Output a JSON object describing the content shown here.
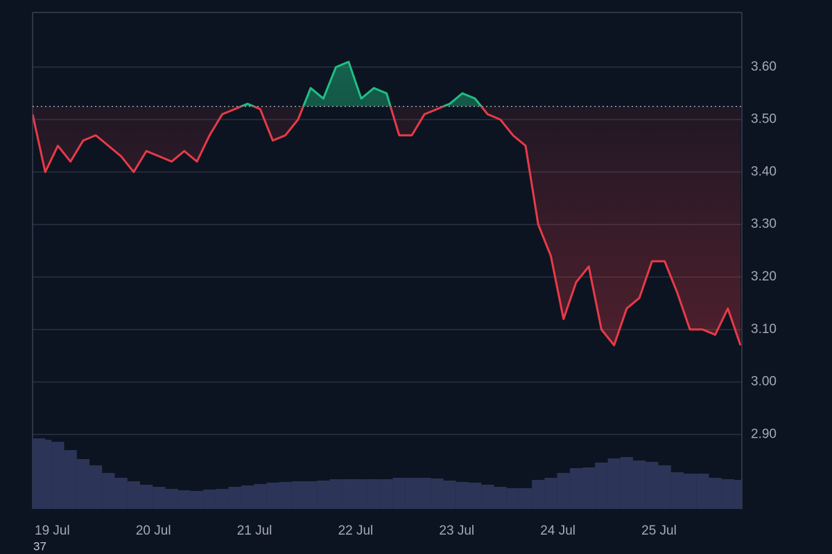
{
  "chart_data": {
    "type": "line",
    "categories": [
      "19 Jul",
      null,
      null,
      null,
      null,
      null,
      null,
      null,
      "20 Jul",
      null,
      null,
      null,
      null,
      null,
      null,
      null,
      "21 Jul",
      null,
      null,
      null,
      null,
      null,
      null,
      null,
      "22 Jul",
      null,
      null,
      null,
      null,
      null,
      null,
      null,
      "23 Jul",
      null,
      null,
      null,
      null,
      null,
      null,
      null,
      "24 Jul",
      null,
      null,
      null,
      null,
      null,
      null,
      null,
      "25 Jul",
      null,
      null,
      null,
      null,
      null,
      null,
      null,
      null
    ],
    "series": [
      {
        "color": "#e83a48",
        "color_above": "#1fbf83",
        "values": [
          3.51,
          3.4,
          3.45,
          3.42,
          3.46,
          3.47,
          3.45,
          3.43,
          3.4,
          3.44,
          3.43,
          3.42,
          3.44,
          3.42,
          3.47,
          3.51,
          3.52,
          3.53,
          3.52,
          3.46,
          3.47,
          3.5,
          3.56,
          3.54,
          3.6,
          3.61,
          3.54,
          3.56,
          3.55,
          3.47,
          3.47,
          3.51,
          3.52,
          3.53,
          3.55,
          3.54,
          3.51,
          3.5,
          3.47,
          3.45,
          3.3,
          3.24,
          3.12,
          3.19,
          3.22,
          3.1,
          3.07,
          3.14,
          3.16,
          3.23,
          3.23,
          3.17,
          3.1,
          3.1,
          3.09,
          3.14,
          3.07
        ]
      },
      {
        "axis": "y2",
        "color": "#2c3558",
        "values": [
          102,
          100,
          97,
          85,
          72,
          63,
          52,
          45,
          40,
          35,
          32,
          29,
          27,
          26,
          28,
          29,
          32,
          34,
          36,
          38,
          39,
          40,
          40,
          41,
          43,
          43,
          43,
          43,
          43,
          45,
          45,
          45,
          44,
          41,
          39,
          38,
          35,
          32,
          30,
          30,
          42,
          45,
          52,
          59,
          60,
          67,
          73,
          75,
          70,
          68,
          63,
          53,
          51,
          51,
          45,
          43,
          42
        ]
      }
    ],
    "baseline": 3.525,
    "ylim": [
      2.758,
      3.704
    ],
    "yticks": [
      {
        "value": 2.9,
        "label": "2.90"
      },
      {
        "value": 3.0,
        "label": "3.00"
      },
      {
        "value": 3.1,
        "label": "3.10"
      },
      {
        "value": 3.2,
        "label": "3.20"
      },
      {
        "value": 3.3,
        "label": "3.30"
      },
      {
        "value": 3.4,
        "label": "3.40"
      },
      {
        "value": 3.5,
        "label": "3.50"
      },
      {
        "value": 3.6,
        "label": "3.60"
      }
    ],
    "y2lim": [
      0,
      717
    ],
    "grid": true,
    "note": "37"
  }
}
